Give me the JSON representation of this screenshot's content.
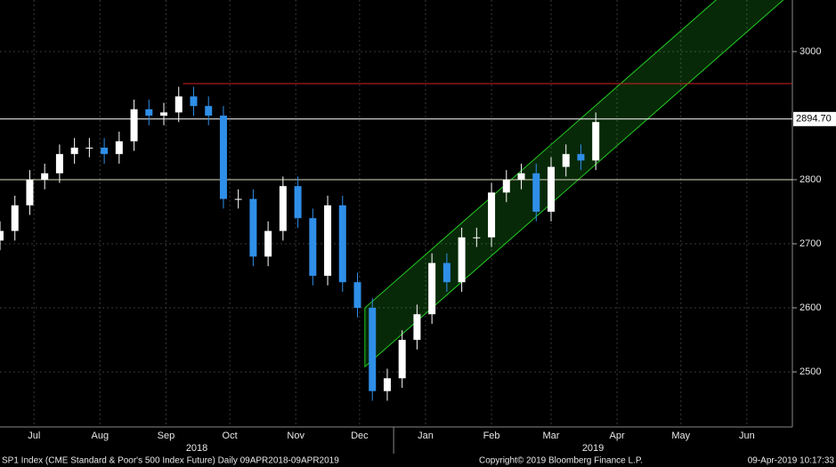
{
  "chart_data": {
    "type": "candlestick",
    "x": [
      0,
      7,
      14,
      21,
      28,
      35,
      42,
      49,
      56,
      63,
      70,
      77,
      84,
      91,
      98,
      105,
      112,
      119,
      126,
      133,
      140,
      147,
      154,
      161,
      168,
      175,
      182,
      189,
      196,
      203,
      210,
      217,
      224,
      231,
      238,
      245,
      252,
      259,
      266,
      273,
      280
    ],
    "open": [
      2705,
      2720,
      2760,
      2800,
      2810,
      2840,
      2850,
      2850,
      2840,
      2860,
      2910,
      2900,
      2905,
      2930,
      2915,
      2900,
      2770,
      2770,
      2680,
      2720,
      2790,
      2740,
      2650,
      2760,
      2640,
      2600,
      2470,
      2490,
      2550,
      2590,
      2670,
      2640,
      2710,
      2710,
      2780,
      2800,
      2810,
      2750,
      2820,
      2840,
      2830
    ],
    "high": [
      2735,
      2775,
      2815,
      2825,
      2855,
      2865,
      2865,
      2865,
      2875,
      2925,
      2925,
      2920,
      2945,
      2945,
      2930,
      2915,
      2785,
      2785,
      2735,
      2805,
      2805,
      2755,
      2775,
      2775,
      2655,
      2615,
      2505,
      2565,
      2605,
      2685,
      2685,
      2725,
      2725,
      2795,
      2815,
      2825,
      2825,
      2835,
      2855,
      2855,
      2905
    ],
    "low": [
      2690,
      2705,
      2745,
      2785,
      2795,
      2825,
      2835,
      2825,
      2825,
      2845,
      2885,
      2885,
      2890,
      2900,
      2885,
      2755,
      2755,
      2665,
      2665,
      2705,
      2725,
      2635,
      2635,
      2625,
      2585,
      2455,
      2455,
      2475,
      2535,
      2575,
      2625,
      2625,
      2695,
      2695,
      2765,
      2785,
      2735,
      2735,
      2805,
      2815,
      2815
    ],
    "close": [
      2720,
      2760,
      2800,
      2810,
      2840,
      2850,
      2850,
      2840,
      2860,
      2910,
      2900,
      2905,
      2930,
      2915,
      2900,
      2770,
      2770,
      2680,
      2720,
      2790,
      2740,
      2650,
      2760,
      2640,
      2600,
      2470,
      2490,
      2550,
      2590,
      2670,
      2640,
      2710,
      2710,
      2780,
      2800,
      2810,
      2750,
      2820,
      2840,
      2830,
      2890
    ],
    "up_color": "#ffffff",
    "down_color": "#2f8fe8",
    "xlim": [
      0,
      372.4
    ],
    "xticks": [
      {
        "value": 16,
        "label": "Jul"
      },
      {
        "value": 47,
        "label": "Aug"
      },
      {
        "value": 78,
        "label": "Sep"
      },
      {
        "value": 108,
        "label": "Oct"
      },
      {
        "value": 139,
        "label": "Nov"
      },
      {
        "value": 169,
        "label": "Dec"
      },
      {
        "value": 200,
        "label": "Jan"
      },
      {
        "value": 231,
        "label": "Feb"
      },
      {
        "value": 259,
        "label": "Mar"
      },
      {
        "value": 290,
        "label": "Apr"
      },
      {
        "value": 320,
        "label": "May"
      },
      {
        "value": 351,
        "label": "Jun"
      }
    ],
    "year_labels": [
      {
        "value": 92.5,
        "label": "2018"
      },
      {
        "value": 278.7,
        "label": "2019"
      }
    ],
    "year_divider": 185,
    "ylim": [
      2414,
      3080.5
    ],
    "yticks": [
      2500,
      2600,
      2700,
      2800,
      3000
    ],
    "grid": true,
    "last_price": {
      "value": 2894.7,
      "label": "2894.70"
    },
    "resistance": {
      "value": 2950,
      "x_start": 86,
      "color": "#d42020"
    },
    "support": {
      "value": 2800,
      "color": "#e0dcc0"
    },
    "channel": {
      "x": [
        171.5,
        372.4
      ],
      "lower": [
        2508,
        3093
      ],
      "upper": [
        2600,
        3185
      ],
      "color": "#22cc22"
    },
    "footer": {
      "left": "SP1 Index (CME Standard & Poor's 500 Index Future)  Daily 09APR2018-09APR2019",
      "center": "Copyright© 2019 Bloomberg Finance L.P.",
      "right": "09-Apr-2019 10:17:33"
    }
  }
}
